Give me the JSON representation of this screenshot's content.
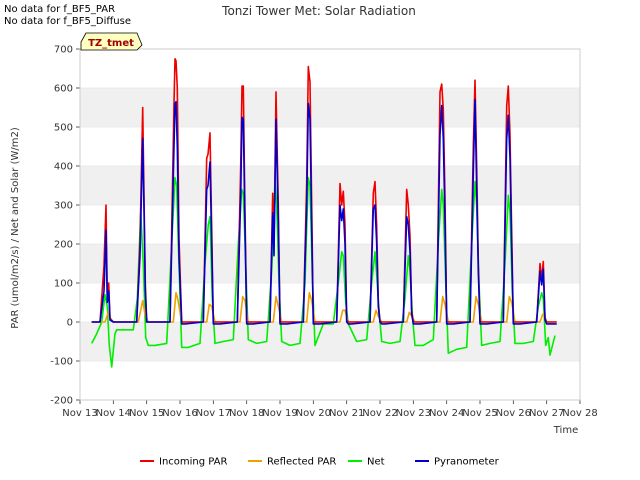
{
  "notes": [
    "No data for f_BF5_PAR",
    "No data for f_BF5_Diffuse"
  ],
  "tag_label": "TZ_tmet",
  "chart_data": {
    "type": "line",
    "title": "Tonzi Tower Met: Solar Radiation",
    "xlabel": "Time",
    "ylabel": "PAR (umol/m2/s) / Net and Solar (W/m2)",
    "x_unit": "days (Nov 13 = 13)",
    "xlim": [
      13,
      28
    ],
    "ylim": [
      -200,
      700
    ],
    "y_ticks": [
      -200,
      -100,
      0,
      100,
      200,
      300,
      400,
      500,
      600,
      700
    ],
    "x_ticks": [
      13,
      14,
      15,
      16,
      17,
      18,
      19,
      20,
      21,
      22,
      23,
      24,
      25,
      26,
      27,
      28
    ],
    "x_tick_labels": [
      "Nov 13",
      "Nov 14",
      "Nov 15",
      "Nov 16",
      "Nov 17",
      "Nov 18",
      "Nov 19",
      "Nov 20",
      "Nov 21",
      "Nov 22",
      "Nov 23",
      "Nov 24",
      "Nov 25",
      "Nov 26",
      "Nov 27",
      "Nov 28"
    ],
    "grid": "horizontal bands",
    "legend_position": "bottom",
    "series": [
      {
        "name": "Incoming PAR",
        "color": "#ee0000",
        "x": [
          13.35,
          13.6,
          13.72,
          13.78,
          13.82,
          13.86,
          13.9,
          14.0,
          14.7,
          14.8,
          14.88,
          14.92,
          14.96,
          15.0,
          15.1,
          15.2,
          15.7,
          15.82,
          15.85,
          15.88,
          15.92,
          15.97,
          16.05,
          16.15,
          16.7,
          16.8,
          16.84,
          16.9,
          16.95,
          17.0,
          17.1,
          17.2,
          17.72,
          17.82,
          17.86,
          17.9,
          17.95,
          18.0,
          18.1,
          18.2,
          18.7,
          18.78,
          18.82,
          18.88,
          18.95,
          19.0,
          19.1,
          19.2,
          19.7,
          19.8,
          19.85,
          19.9,
          19.95,
          20.0,
          20.1,
          20.2,
          20.7,
          20.8,
          20.85,
          20.9,
          20.95,
          21.0,
          21.05,
          21.15,
          21.7,
          21.8,
          21.85,
          21.9,
          21.95,
          22.0,
          22.05,
          22.15,
          22.7,
          22.8,
          22.85,
          22.9,
          22.95,
          23.0,
          23.1,
          23.2,
          23.7,
          23.8,
          23.85,
          23.9,
          23.95,
          24.0,
          24.1,
          24.2,
          24.7,
          24.8,
          24.85,
          24.9,
          24.95,
          25.0,
          25.1,
          25.2,
          25.7,
          25.8,
          25.85,
          25.9,
          25.95,
          26.0,
          26.1,
          26.2,
          26.7,
          26.8,
          26.85,
          26.9,
          26.95,
          27.0,
          27.05,
          27.3
        ],
        "y": [
          0,
          0,
          145,
          300,
          60,
          100,
          10,
          0,
          0,
          205,
          550,
          325,
          100,
          0,
          0,
          0,
          0,
          560,
          675,
          670,
          600,
          215,
          0,
          0,
          0,
          420,
          430,
          485,
          240,
          0,
          0,
          0,
          0,
          400,
          605,
          605,
          280,
          0,
          0,
          0,
          0,
          330,
          195,
          590,
          300,
          0,
          0,
          0,
          0,
          360,
          655,
          615,
          300,
          0,
          0,
          0,
          0,
          355,
          300,
          335,
          250,
          5,
          0,
          0,
          0,
          330,
          360,
          245,
          50,
          0,
          0,
          0,
          0,
          340,
          300,
          220,
          30,
          0,
          0,
          0,
          0,
          590,
          610,
          545,
          320,
          0,
          0,
          0,
          0,
          450,
          620,
          400,
          150,
          0,
          0,
          0,
          0,
          555,
          605,
          480,
          230,
          0,
          0,
          0,
          0,
          150,
          110,
          155,
          10,
          0,
          0,
          0
        ]
      },
      {
        "name": "Reflected PAR",
        "color": "#f0a000",
        "x": [
          13.35,
          13.75,
          13.85,
          13.9,
          14.0,
          14.75,
          14.88,
          14.95,
          15.05,
          15.8,
          15.88,
          15.93,
          16.05,
          16.8,
          16.88,
          16.95,
          17.05,
          17.8,
          17.88,
          17.95,
          18.05,
          18.8,
          18.88,
          18.95,
          19.05,
          19.8,
          19.88,
          19.95,
          20.05,
          20.8,
          20.88,
          20.95,
          21.05,
          21.8,
          21.88,
          21.95,
          22.05,
          22.8,
          22.88,
          22.95,
          23.05,
          23.8,
          23.88,
          23.95,
          24.05,
          24.8,
          24.88,
          24.95,
          25.05,
          25.8,
          25.88,
          25.95,
          26.05,
          26.8,
          26.88,
          26.95,
          27.0,
          27.3
        ],
        "y": [
          0,
          0,
          25,
          10,
          0,
          0,
          55,
          20,
          0,
          0,
          75,
          60,
          0,
          0,
          45,
          40,
          0,
          0,
          65,
          55,
          0,
          0,
          65,
          40,
          0,
          0,
          75,
          55,
          0,
          0,
          30,
          30,
          0,
          0,
          30,
          15,
          0,
          0,
          25,
          15,
          0,
          0,
          65,
          45,
          0,
          0,
          65,
          45,
          0,
          0,
          65,
          50,
          0,
          0,
          20,
          12,
          0,
          0
        ]
      },
      {
        "name": "Net",
        "color": "#00ee00",
        "x": [
          13.35,
          13.5,
          13.65,
          13.75,
          13.82,
          13.88,
          13.95,
          14.05,
          14.1,
          14.3,
          14.6,
          14.72,
          14.82,
          14.9,
          14.97,
          15.05,
          15.25,
          15.6,
          15.75,
          15.85,
          15.9,
          15.95,
          16.05,
          16.25,
          16.6,
          16.75,
          16.85,
          16.9,
          16.97,
          17.05,
          17.3,
          17.6,
          17.75,
          17.85,
          17.9,
          17.97,
          18.05,
          18.3,
          18.6,
          18.75,
          18.85,
          18.9,
          18.97,
          19.05,
          19.3,
          19.6,
          19.75,
          19.85,
          19.9,
          19.97,
          20.05,
          20.3,
          20.6,
          20.75,
          20.85,
          20.9,
          20.97,
          21.05,
          21.3,
          21.6,
          21.75,
          21.85,
          21.9,
          21.97,
          22.05,
          22.3,
          22.6,
          22.75,
          22.85,
          22.9,
          22.97,
          23.05,
          23.3,
          23.6,
          23.75,
          23.85,
          23.9,
          23.97,
          24.05,
          24.3,
          24.6,
          24.75,
          24.85,
          24.9,
          24.97,
          25.05,
          25.3,
          25.6,
          25.75,
          25.85,
          25.9,
          25.97,
          26.05,
          26.3,
          26.6,
          26.75,
          26.85,
          26.9,
          26.97,
          27.05,
          27.1,
          27.25
        ],
        "y": [
          -55,
          -30,
          0,
          70,
          40,
          -60,
          -115,
          -30,
          -20,
          -20,
          -20,
          60,
          280,
          150,
          -40,
          -60,
          -60,
          -55,
          200,
          370,
          350,
          200,
          -65,
          -65,
          -55,
          150,
          250,
          270,
          60,
          -55,
          -50,
          -45,
          200,
          340,
          330,
          150,
          -45,
          -55,
          -50,
          130,
          360,
          300,
          100,
          -50,
          -60,
          -55,
          100,
          370,
          350,
          120,
          -60,
          -5,
          -5,
          100,
          180,
          170,
          50,
          -5,
          -50,
          -45,
          100,
          180,
          120,
          30,
          -50,
          -55,
          -50,
          60,
          170,
          130,
          20,
          -60,
          -60,
          -45,
          200,
          340,
          300,
          100,
          -80,
          -70,
          -65,
          200,
          360,
          300,
          100,
          -60,
          -55,
          -50,
          150,
          325,
          280,
          80,
          -55,
          -55,
          -50,
          40,
          75,
          60,
          -60,
          -40,
          -85,
          -35
        ]
      },
      {
        "name": "Pyranometer",
        "color": "#0000cc",
        "x": [
          13.35,
          13.6,
          13.72,
          13.78,
          13.82,
          13.86,
          13.9,
          14.0,
          14.7,
          14.8,
          14.88,
          14.92,
          14.96,
          15.0,
          15.1,
          15.2,
          15.7,
          15.82,
          15.85,
          15.88,
          15.92,
          15.97,
          16.05,
          16.15,
          16.7,
          16.8,
          16.84,
          16.9,
          16.95,
          17.0,
          17.1,
          17.2,
          17.72,
          17.82,
          17.86,
          17.9,
          17.95,
          18.0,
          18.1,
          18.2,
          18.7,
          18.78,
          18.82,
          18.88,
          18.95,
          19.0,
          19.1,
          19.2,
          19.7,
          19.8,
          19.85,
          19.9,
          19.95,
          20.0,
          20.1,
          20.2,
          20.7,
          20.8,
          20.85,
          20.9,
          20.95,
          21.0,
          21.05,
          21.15,
          21.7,
          21.8,
          21.85,
          21.9,
          21.95,
          22.0,
          22.05,
          22.15,
          22.7,
          22.8,
          22.85,
          22.9,
          22.95,
          23.0,
          23.1,
          23.2,
          23.7,
          23.8,
          23.85,
          23.9,
          23.95,
          24.0,
          24.1,
          24.2,
          24.7,
          24.8,
          24.85,
          24.9,
          24.95,
          25.0,
          25.1,
          25.2,
          25.7,
          25.8,
          25.85,
          25.9,
          25.95,
          26.0,
          26.1,
          26.2,
          26.7,
          26.8,
          26.85,
          26.9,
          26.95,
          27.0,
          27.05,
          27.3
        ],
        "y": [
          0,
          0,
          80,
          235,
          50,
          80,
          5,
          0,
          0,
          170,
          470,
          290,
          80,
          0,
          0,
          0,
          0,
          450,
          560,
          565,
          450,
          165,
          -5,
          -5,
          0,
          340,
          350,
          410,
          200,
          -5,
          -5,
          -5,
          0,
          320,
          525,
          520,
          240,
          -5,
          -5,
          -5,
          0,
          280,
          170,
          520,
          260,
          -5,
          -5,
          -5,
          0,
          300,
          560,
          520,
          240,
          -5,
          -5,
          -5,
          0,
          300,
          260,
          290,
          200,
          0,
          -5,
          -5,
          0,
          290,
          300,
          200,
          40,
          0,
          -5,
          -5,
          0,
          270,
          250,
          180,
          20,
          -5,
          -5,
          -5,
          0,
          480,
          555,
          470,
          260,
          -5,
          -5,
          -5,
          0,
          380,
          570,
          340,
          130,
          -5,
          -5,
          -5,
          0,
          470,
          530,
          420,
          190,
          -5,
          -5,
          -5,
          0,
          130,
          95,
          135,
          5,
          -5,
          -5,
          -5
        ]
      }
    ]
  }
}
